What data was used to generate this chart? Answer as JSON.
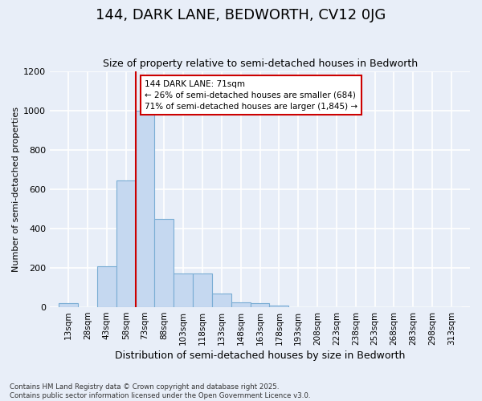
{
  "title": "144, DARK LANE, BEDWORTH, CV12 0JG",
  "subtitle": "Size of property relative to semi-detached houses in Bedworth",
  "xlabel": "Distribution of semi-detached houses by size in Bedworth",
  "ylabel": "Number of semi-detached properties",
  "bar_labels": [
    "13sqm",
    "28sqm",
    "43sqm",
    "58sqm",
    "73sqm",
    "88sqm",
    "103sqm",
    "118sqm",
    "133sqm",
    "148sqm",
    "163sqm",
    "178sqm",
    "193sqm",
    "208sqm",
    "223sqm",
    "238sqm",
    "253sqm",
    "268sqm",
    "283sqm",
    "298sqm",
    "313sqm"
  ],
  "bar_values": [
    20,
    0,
    210,
    645,
    1000,
    450,
    170,
    170,
    70,
    25,
    20,
    10,
    0,
    0,
    0,
    0,
    0,
    0,
    0,
    0,
    0
  ],
  "bar_color": "#c5d8f0",
  "bar_edge_color": "#7aadd4",
  "vline_color": "#cc0000",
  "vline_x": 73,
  "annotation_title": "144 DARK LANE: 71sqm",
  "annotation_smaller": "← 26% of semi-detached houses are smaller (684)",
  "annotation_larger": "71% of semi-detached houses are larger (1,845) →",
  "annotation_box_facecolor": "#ffffff",
  "annotation_box_edgecolor": "#cc0000",
  "ylim": [
    0,
    1200
  ],
  "yticks": [
    0,
    200,
    400,
    600,
    800,
    1000,
    1200
  ],
  "bin_edges": [
    13,
    28,
    43,
    58,
    73,
    88,
    103,
    118,
    133,
    148,
    163,
    178,
    193,
    208,
    223,
    238,
    253,
    268,
    283,
    298,
    313,
    328
  ],
  "footnote1": "Contains HM Land Registry data © Crown copyright and database right 2025.",
  "footnote2": "Contains public sector information licensed under the Open Government Licence v3.0.",
  "background_color": "#e8eef8",
  "grid_color": "#ffffff",
  "title_fontsize": 13,
  "subtitle_fontsize": 9,
  "ylabel_fontsize": 8,
  "xlabel_fontsize": 9,
  "tick_fontsize": 7.5
}
